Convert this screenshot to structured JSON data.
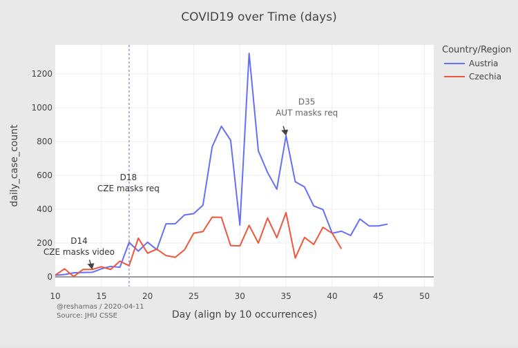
{
  "chart_data": {
    "type": "line",
    "title": "COVID19 over Time (days)",
    "xlabel": "Day (align by 10 occurrences)",
    "ylabel": "daily_case_count",
    "xlim": [
      10,
      51
    ],
    "ylim": [
      -57,
      1371
    ],
    "xticks": [
      10,
      15,
      20,
      25,
      30,
      35,
      40,
      45,
      50
    ],
    "yticks": [
      0,
      200,
      400,
      600,
      800,
      1000,
      1200
    ],
    "grid": true,
    "legend": {
      "title": "Country/Region",
      "placement": "top-right"
    },
    "series": [
      {
        "name": "Austria",
        "color": "#636efa",
        "x": [
          10,
          11,
          12,
          13,
          14,
          15,
          16,
          17,
          18,
          19,
          20,
          21,
          22,
          23,
          24,
          25,
          26,
          27,
          28,
          29,
          30,
          31,
          32,
          33,
          34,
          35,
          36,
          37,
          38,
          39,
          40,
          41,
          42,
          43,
          44,
          45,
          46
        ],
        "values": [
          10,
          14,
          24,
          26,
          27,
          48,
          62,
          57,
          204,
          152,
          205,
          161,
          314,
          314,
          366,
          374,
          424,
          769,
          890,
          807,
          306,
          1321,
          745,
          617,
          518,
          834,
          562,
          532,
          419,
          398,
          258,
          270,
          245,
          342,
          301,
          301,
          312
        ]
      },
      {
        "name": "Czechia",
        "color": "#ef553b",
        "x": [
          10,
          11,
          12,
          13,
          14,
          15,
          16,
          17,
          18,
          19,
          20,
          21,
          22,
          23,
          24,
          25,
          26,
          27,
          28,
          29,
          30,
          31,
          32,
          33,
          34,
          35,
          36,
          37,
          38,
          39,
          40,
          41
        ],
        "values": [
          10,
          48,
          2,
          44,
          44,
          60,
          44,
          93,
          66,
          229,
          140,
          164,
          126,
          116,
          160,
          258,
          268,
          353,
          352,
          185,
          183,
          305,
          200,
          348,
          232,
          380,
          112,
          233,
          192,
          293,
          258,
          166
        ]
      }
    ],
    "vline": {
      "x": 18,
      "color": "#9b8ee6"
    },
    "annotations": [
      {
        "x": 18,
        "y": 400,
        "lines": [
          "D18",
          "CZE masks req"
        ],
        "arrow": false
      },
      {
        "x": 14,
        "y": 44,
        "lines": [
          "D14",
          "CZE masks video"
        ],
        "arrow": true
      },
      {
        "x": 35,
        "y": 834,
        "lines": [
          "D35",
          "AUT masks req"
        ],
        "arrow": true
      }
    ],
    "footnote": [
      "@reshamas / 2020-04-11",
      "Source: JHU CSSE"
    ]
  }
}
